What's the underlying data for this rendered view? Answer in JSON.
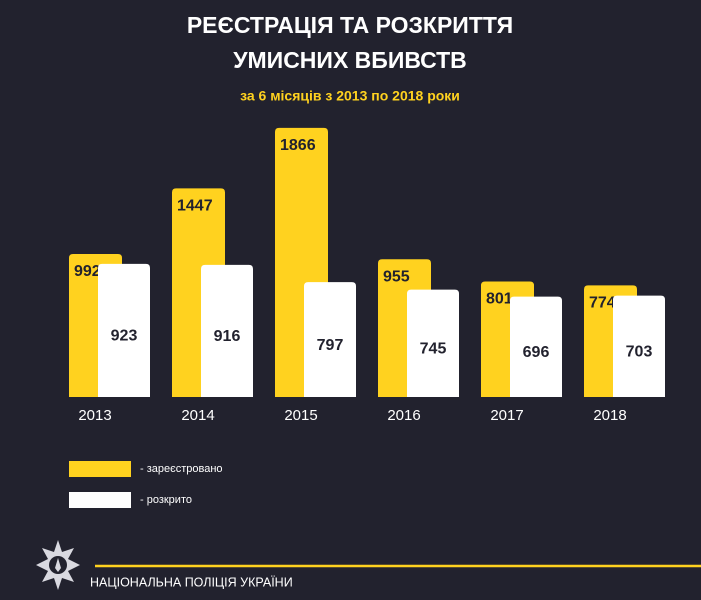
{
  "chart_data": {
    "type": "bar",
    "title": [
      "РЕЄСТРАЦІЯ ТА РОЗКРИТТЯ",
      "УМИСНИХ ВБИВСТВ"
    ],
    "subtitle": "за 6 місяців з 2013 по 2018 роки",
    "categories": [
      "2013",
      "2014",
      "2015",
      "2016",
      "2017",
      "2018"
    ],
    "series": [
      {
        "name": "- зареєстровано",
        "color": "#ffd21f",
        "values": [
          992,
          1447,
          1866,
          955,
          801,
          774
        ]
      },
      {
        "name": "- розкрито",
        "color": "#ffffff",
        "values": [
          923,
          916,
          797,
          745,
          696,
          703
        ]
      }
    ],
    "ylim": [
      0,
      1900
    ],
    "footer": "НАЦІОНАЛЬНА ПОЛІЦІЯ УКРАЇНИ"
  }
}
